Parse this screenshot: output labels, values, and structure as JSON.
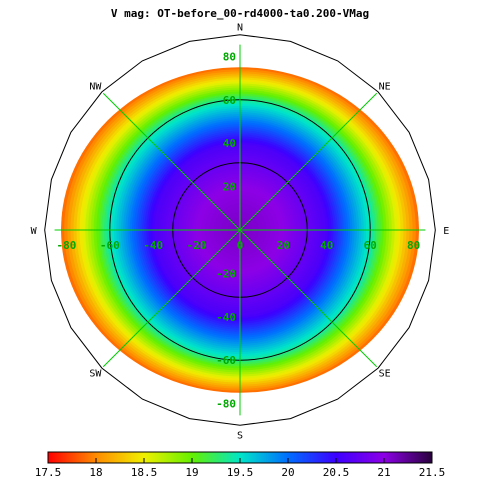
{
  "chart_data": {
    "type": "heatmap",
    "projection": "polar",
    "title": "V mag: OT-before_00-rd4000-ta0.200-VMag",
    "directions": {
      "n": "N",
      "ne": "NE",
      "e": "E",
      "se": "SE",
      "s": "S",
      "sw": "SW",
      "w": "W",
      "nw": "NW"
    },
    "radial_range": [
      0,
      90
    ],
    "x_ticks": [
      -80,
      -60,
      -40,
      -20,
      0,
      20,
      40,
      60,
      80
    ],
    "y_ticks": [
      80,
      60,
      40,
      20,
      0,
      -20,
      -40,
      -60,
      -80
    ],
    "data_extent_radius": 75,
    "magnitude_profile": {
      "radius": [
        0,
        20,
        40,
        60,
        75
      ],
      "vmag": [
        21.1,
        21.0,
        20.6,
        19.4,
        17.9
      ]
    },
    "ew_stretch_at_edge": 1.1,
    "contour_radii": [
      31,
      60
    ],
    "colorbar": {
      "ticks": [
        "17.5",
        "18",
        "18.5",
        "19",
        "19.5",
        "20",
        "20.5",
        "21",
        "21.5"
      ],
      "range": [
        17.5,
        21.5
      ]
    },
    "colors": {
      "grid": "#00cc00",
      "tick_labels": "#00aa00",
      "outline": "#000000",
      "contour": "#000000"
    }
  }
}
